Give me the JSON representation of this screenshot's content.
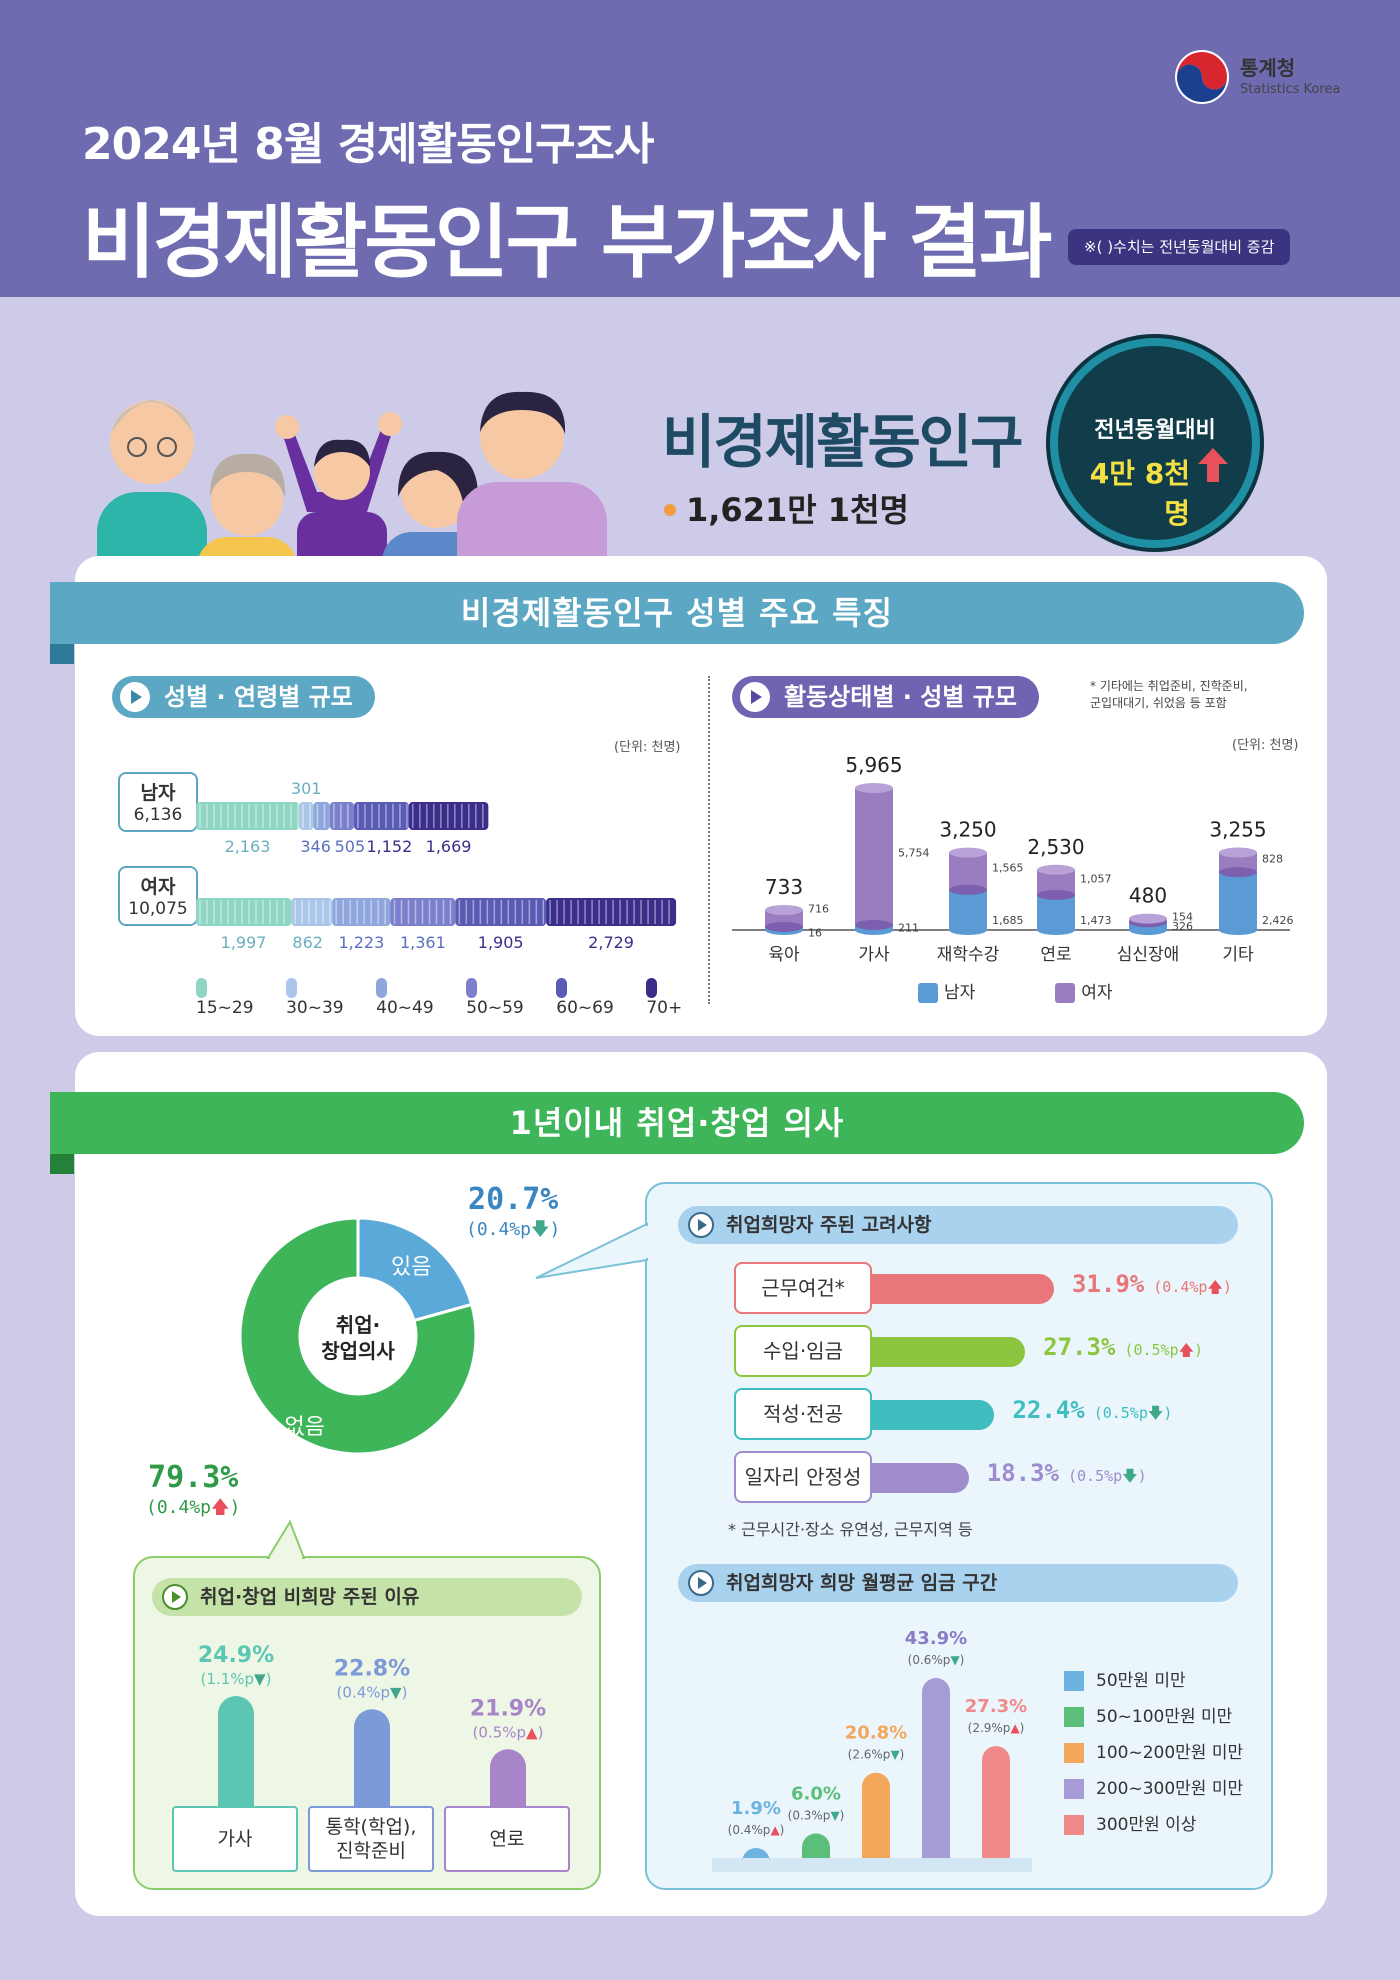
{
  "header": {
    "subtitle": "2024년 8월 경제활동인구조사",
    "title": "비경제활동인구 부가조사 결과",
    "note": "※( )수치는 전년동월대비 증감",
    "logo_name": "통계청",
    "logo_sub": "Statistics Korea"
  },
  "summary": {
    "label": "비경제활동인구",
    "value": "1,621만 1천명",
    "yoy_label": "전년동월대비",
    "yoy_value": "4만 8천명",
    "yoy_direction": "up"
  },
  "section1": {
    "ribbon": "비경제활동인구 성별 주요 특징",
    "age_title": "성별 · 연령별 규모",
    "act_title": "활동상태별 · 성별 규모",
    "act_note": "* 기타에는 취업준비, 진학준비,\n군입대대기, 쉬었음 등 포함",
    "unit": "(단위: 천명)"
  },
  "section2": {
    "ribbon": "1년이내 취업·창업 의사",
    "donut_center": "취업·\n창업의사",
    "consider_title": "취업희망자 주된 고려사항",
    "consider_note": "* 근무시간·장소 유연성, 근무지역 등",
    "wage_title": "취업희망자 희망 월평균 임금 구간",
    "reason_title": "취업·창업 비희망 주된 이유"
  },
  "colors": {
    "age": [
      "#8fd6c4",
      "#aac7ea",
      "#8fa6dc",
      "#7c80cc",
      "#5a5bb4",
      "#3a2e8a"
    ],
    "male": "#5b9bd5",
    "female": "#9a7cc0",
    "yes": "#5aa9d8",
    "no": "#3fb55a",
    "up": "#e8505b",
    "down": "#3fa88a"
  },
  "chart_data": [
    {
      "type": "bar",
      "name": "성별·연령별 규모",
      "orientation": "horizontal-stacked",
      "unit": "천명",
      "categories": [
        "15~29",
        "30~39",
        "40~49",
        "50~59",
        "60~69",
        "70+"
      ],
      "series": [
        {
          "name": "남자",
          "total": "6,136",
          "values": [
            2163,
            301,
            346,
            505,
            1152,
            1669
          ],
          "labels": [
            "2,163",
            "301",
            "346",
            "505",
            "1,152",
            "1,669"
          ]
        },
        {
          "name": "여자",
          "total": "10,075",
          "values": [
            1997,
            862,
            1223,
            1361,
            1905,
            2729
          ],
          "labels": [
            "1,997",
            "862",
            "1,223",
            "1,361",
            "1,905",
            "2,729"
          ]
        }
      ]
    },
    {
      "type": "bar",
      "name": "활동상태별·성별 규모",
      "orientation": "vertical-stacked",
      "unit": "천명",
      "categories": [
        "육아",
        "가사",
        "재학수강",
        "연로",
        "심신장애",
        "기타"
      ],
      "totals": [
        733,
        5965,
        3250,
        2530,
        480,
        3255
      ],
      "total_labels": [
        "733",
        "5,965",
        "3,250",
        "2,530",
        "480",
        "3,255"
      ],
      "series": [
        {
          "name": "남자",
          "values": [
            16,
            211,
            1685,
            1473,
            326,
            2426
          ],
          "labels": [
            "16",
            "211",
            "1,685",
            "1,473",
            "326",
            "2,426"
          ]
        },
        {
          "name": "여자",
          "values": [
            716,
            5754,
            1565,
            1057,
            154,
            828
          ],
          "labels": [
            "716",
            "5,754",
            "1,565",
            "1,057",
            "154",
            "828"
          ]
        }
      ]
    },
    {
      "type": "pie",
      "name": "1년이내 취업·창업 의사",
      "categories": [
        "있음",
        "없음"
      ],
      "values": [
        20.7,
        79.3
      ],
      "labels": [
        "20.7%",
        "79.3%"
      ],
      "changes": [
        "(0.4%p",
        "(0.4%p"
      ],
      "change_dir": [
        "down",
        "up"
      ]
    },
    {
      "type": "bar",
      "name": "취업희망자 주된 고려사항",
      "orientation": "horizontal",
      "categories": [
        "근무여건*",
        "수입·임금",
        "적성·전공",
        "일자리 안정성"
      ],
      "values": [
        31.9,
        27.3,
        22.4,
        18.3
      ],
      "labels": [
        "31.9%",
        "27.3%",
        "22.4%",
        "18.3%"
      ],
      "changes": [
        "(0.4%p",
        "(0.5%p",
        "(0.5%p",
        "(0.5%p"
      ],
      "change_dir": [
        "up",
        "up",
        "down",
        "down"
      ],
      "colors": [
        "#e8767a",
        "#8cc63f",
        "#3fbdc0",
        "#9e8ccc"
      ]
    },
    {
      "type": "bar",
      "name": "취업희망자 희망 월평균 임금 구간",
      "categories": [
        "50만원 미만",
        "50~100만원 미만",
        "100~200만원 미만",
        "200~300만원 미만",
        "300만원 이상"
      ],
      "values": [
        1.9,
        6.0,
        20.8,
        43.9,
        27.3
      ],
      "labels": [
        "1.9%",
        "6.0%",
        "20.8%",
        "43.9%",
        "27.3%"
      ],
      "changes": [
        "(0.4%p",
        "(0.3%p",
        "(2.6%p",
        "(0.6%p",
        "(2.9%p"
      ],
      "change_dir": [
        "up",
        "down",
        "down",
        "down",
        "up"
      ],
      "colors": [
        "#6cb3e0",
        "#5bbf7a",
        "#f2a75b",
        "#a89cd6",
        "#f08a8a"
      ]
    },
    {
      "type": "bar",
      "name": "취업·창업 비희망 주된 이유",
      "categories": [
        "가사",
        "통학(학업),\n진학준비",
        "연로"
      ],
      "values": [
        24.9,
        22.8,
        21.9
      ],
      "labels": [
        "24.9%",
        "22.8%",
        "21.9%"
      ],
      "changes": [
        "(1.1%p",
        "(0.4%p",
        "(0.5%p"
      ],
      "change_dir": [
        "down",
        "down",
        "up"
      ],
      "colors": [
        "#5cc6b2",
        "#7c9ad8",
        "#a884c8"
      ]
    }
  ]
}
